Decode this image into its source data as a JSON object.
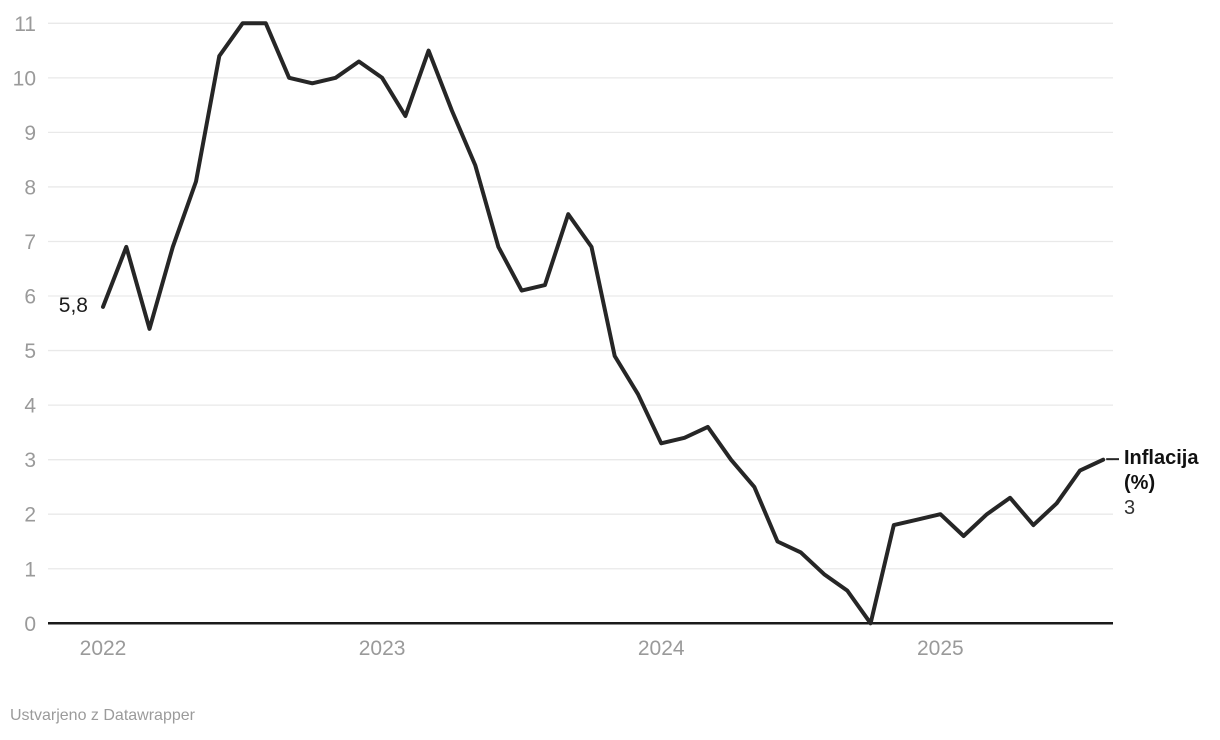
{
  "chart_data": {
    "type": "line",
    "title": "",
    "series_name_lines": [
      "Inflacija",
      "(%)"
    ],
    "start_label": "5,8",
    "end_value_label": "3",
    "months": [
      "2022-01",
      "2022-02",
      "2022-03",
      "2022-04",
      "2022-05",
      "2022-06",
      "2022-07",
      "2022-08",
      "2022-09",
      "2022-10",
      "2022-11",
      "2022-12",
      "2023-01",
      "2023-02",
      "2023-03",
      "2023-04",
      "2023-05",
      "2023-06",
      "2023-07",
      "2023-08",
      "2023-09",
      "2023-10",
      "2023-11",
      "2023-12",
      "2024-01",
      "2024-02",
      "2024-03",
      "2024-04",
      "2024-05",
      "2024-06",
      "2024-07",
      "2024-08",
      "2024-09",
      "2024-10",
      "2024-11",
      "2024-12",
      "2025-01",
      "2025-02",
      "2025-03",
      "2025-04",
      "2025-05",
      "2025-06",
      "2025-07",
      "2025-08"
    ],
    "values": [
      5.8,
      6.9,
      5.4,
      6.9,
      8.1,
      10.4,
      11.0,
      11.0,
      10.0,
      9.9,
      10.0,
      10.3,
      10.0,
      9.3,
      10.5,
      9.4,
      8.4,
      6.9,
      6.1,
      6.2,
      7.5,
      6.9,
      4.9,
      4.2,
      3.3,
      3.4,
      3.6,
      3.0,
      2.5,
      1.5,
      1.3,
      0.9,
      0.6,
      0.0,
      1.8,
      1.9,
      2.0,
      1.6,
      2.0,
      2.3,
      1.8,
      2.2,
      2.8,
      3.0
    ],
    "x_tick_labels": [
      "2022",
      "2023",
      "2024",
      "2025"
    ],
    "y_ticks": [
      0,
      1,
      2,
      3,
      4,
      5,
      6,
      7,
      8,
      9,
      10,
      11
    ],
    "ylim": [
      0,
      11
    ],
    "grid": "horizontal",
    "legend_position": "end-of-line"
  },
  "colors": {
    "line": "#262626",
    "grid": "#e9e9e9",
    "axis": "#1a1a1a",
    "tick_text": "#9a9a9a"
  },
  "footer": {
    "attribution": "Ustvarjeno z Datawrapper"
  }
}
